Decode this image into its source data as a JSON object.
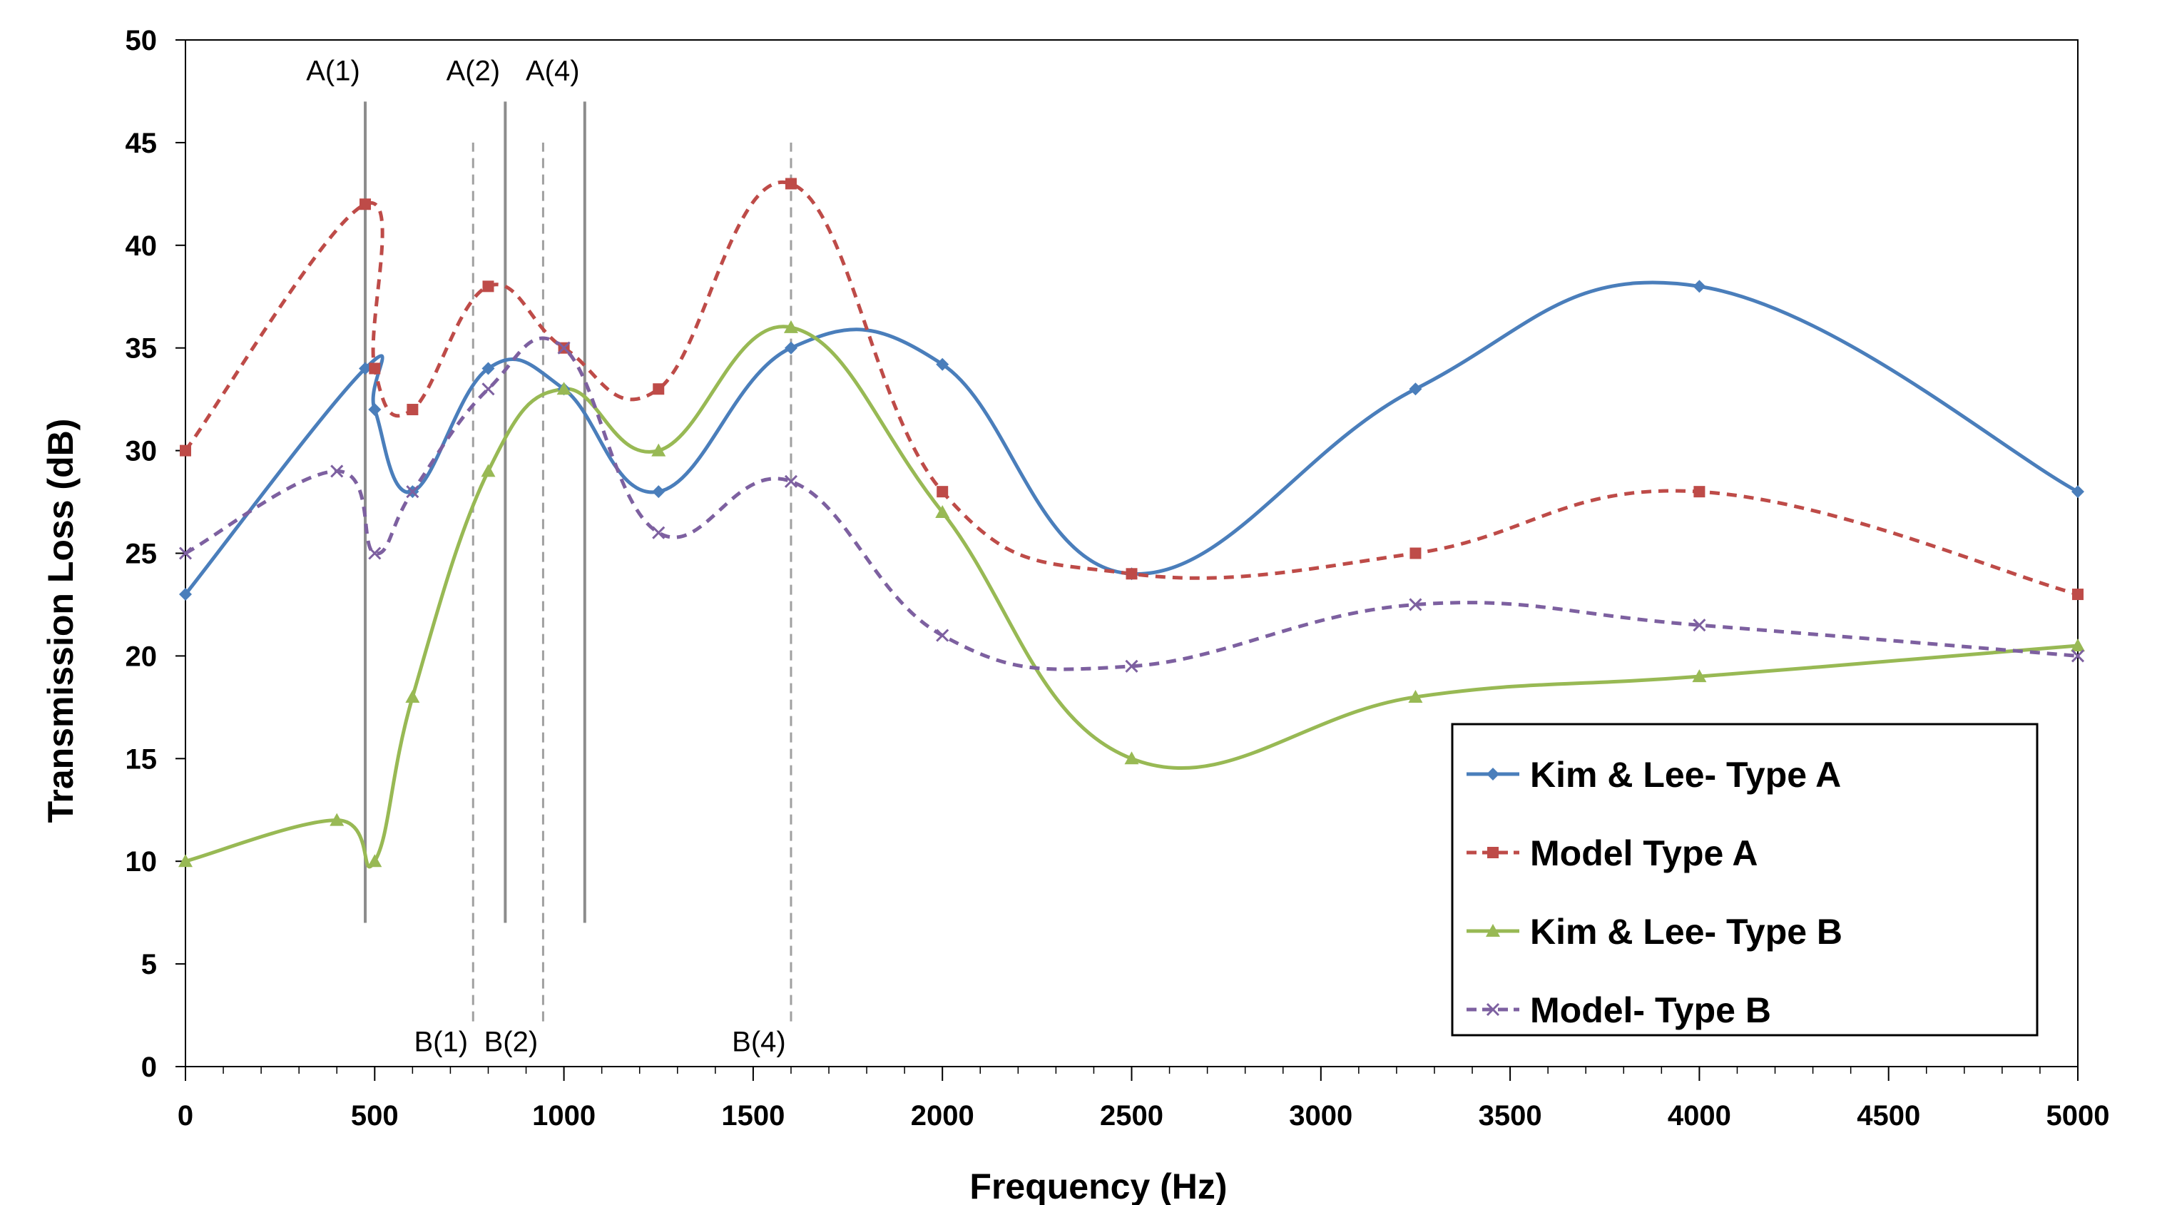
{
  "chart_data": {
    "type": "line",
    "title": "",
    "xlabel": "Frequency (Hz)",
    "ylabel": "Transmission Loss (dB)",
    "xlim": [
      0,
      5000
    ],
    "ylim": [
      0,
      50
    ],
    "x_ticks": [
      0,
      500,
      1000,
      1500,
      2000,
      2500,
      3000,
      3500,
      4000,
      4500,
      5000
    ],
    "y_ticks": [
      0,
      5,
      10,
      15,
      20,
      25,
      30,
      35,
      40,
      45,
      50
    ],
    "grid": false,
    "smooth": true,
    "legend_position": "bottom-right",
    "series": [
      {
        "name": "Kim & Lee- Type A",
        "color": "#4a7ebb",
        "dash": "solid",
        "marker": "diamond",
        "points": [
          [
            0,
            23
          ],
          [
            475,
            34
          ],
          [
            500,
            32
          ],
          [
            600,
            28
          ],
          [
            800,
            34
          ],
          [
            1000,
            33
          ],
          [
            1250,
            28
          ],
          [
            1600,
            35
          ],
          [
            2000,
            34.2
          ],
          [
            2500,
            24
          ],
          [
            3250,
            33
          ],
          [
            4000,
            38
          ],
          [
            5000,
            28
          ]
        ]
      },
      {
        "name": "Model Type A",
        "color": "#be4b48",
        "dash": "dashed",
        "marker": "square",
        "points": [
          [
            0,
            30
          ],
          [
            475,
            42
          ],
          [
            500,
            34
          ],
          [
            600,
            32
          ],
          [
            800,
            38
          ],
          [
            1000,
            35
          ],
          [
            1250,
            33
          ],
          [
            1600,
            43
          ],
          [
            2000,
            28
          ],
          [
            2500,
            24
          ],
          [
            3250,
            25
          ],
          [
            4000,
            28
          ],
          [
            5000,
            23
          ]
        ]
      },
      {
        "name": "Kim & Lee- Type B",
        "color": "#98b954",
        "dash": "solid",
        "marker": "triangle",
        "points": [
          [
            0,
            10
          ],
          [
            400,
            12
          ],
          [
            500,
            10
          ],
          [
            600,
            18
          ],
          [
            800,
            29
          ],
          [
            1000,
            33
          ],
          [
            1250,
            30
          ],
          [
            1600,
            36
          ],
          [
            2000,
            27
          ],
          [
            2500,
            15
          ],
          [
            3250,
            18
          ],
          [
            4000,
            19
          ],
          [
            5000,
            20.5
          ]
        ]
      },
      {
        "name": "Model- Type B",
        "color": "#7d60a0",
        "dash": "dashed",
        "marker": "x",
        "points": [
          [
            0,
            25
          ],
          [
            400,
            29
          ],
          [
            500,
            25
          ],
          [
            600,
            28
          ],
          [
            800,
            33
          ],
          [
            1000,
            35
          ],
          [
            1250,
            26
          ],
          [
            1600,
            28.5
          ],
          [
            2000,
            21
          ],
          [
            2500,
            19.5
          ],
          [
            3250,
            22.5
          ],
          [
            4000,
            21.5
          ],
          [
            5000,
            20
          ]
        ]
      }
    ],
    "reference_lines": [
      {
        "x": 475,
        "style": "solid",
        "y_from": 7,
        "y_to": 47,
        "label": "A(1)",
        "label_pos": "top"
      },
      {
        "x": 845,
        "style": "solid",
        "y_from": 7,
        "y_to": 47,
        "label": "A(2)",
        "label_pos": "top"
      },
      {
        "x": 1055,
        "style": "solid",
        "y_from": 7,
        "y_to": 47,
        "label": "A(4)",
        "label_pos": "top"
      },
      {
        "x": 760,
        "style": "dashed",
        "y_from": 2.2,
        "y_to": 45,
        "label": "B(1)",
        "label_pos": "bottom"
      },
      {
        "x": 945,
        "style": "dashed",
        "y_from": 2.2,
        "y_to": 45,
        "label": "B(2)",
        "label_pos": "bottom"
      },
      {
        "x": 1600,
        "style": "dashed",
        "y_from": 2.2,
        "y_to": 45,
        "label": "B(4)",
        "label_pos": "bottom"
      }
    ]
  }
}
